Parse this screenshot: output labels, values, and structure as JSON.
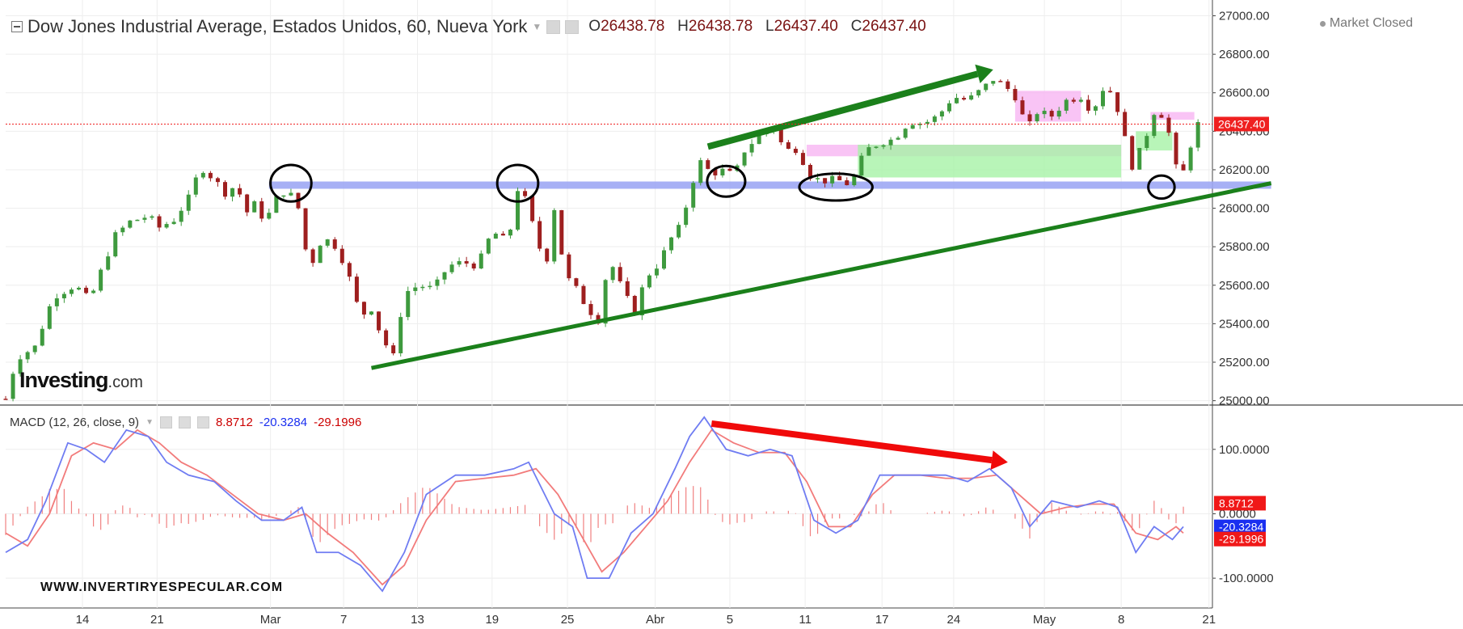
{
  "header": {
    "title": "Dow Jones Industrial Average, Estados Unidos, 60, Nueva York",
    "open_label": "O",
    "open": "26438.78",
    "high_label": "H",
    "high": "26438.78",
    "low_label": "L",
    "low": "26437.40",
    "close_label": "C",
    "close": "26437.40",
    "market_status": "Market Closed"
  },
  "logo": {
    "brand": "Investing",
    "suffix": ".com"
  },
  "watermark": "WWW.INVERTIRYESPECULAR.COM",
  "macd_header": {
    "label": "MACD (12, 26, close, 9)",
    "histogram": "8.8712",
    "macd": "-20.3284",
    "signal": "-29.1996"
  },
  "colors": {
    "up": "#3e9a3e",
    "down": "#9e1f1f",
    "trend": "#1b801b",
    "arrow_red": "#f00a0a",
    "support_band": "#9ea8f5",
    "pink_zone": "#f7b5f2",
    "green_zone": "#a6f2a6",
    "macd_line": "#6f7cf2",
    "signal_line": "#f27b7b",
    "histogram": "#f08080",
    "last_price": "#ef2020",
    "macd_badge": "#1a2ff0",
    "signal_badge": "#f01818"
  },
  "chart_data": [
    {
      "type": "candlestick",
      "title": "Dow Jones Industrial Average, Estados Unidos, 60, Nueva York",
      "x_ticks": [
        "14",
        "21",
        "Mar",
        "7",
        "13",
        "19",
        "25",
        "Abr",
        "5",
        "11",
        "17",
        "24",
        "May",
        "8",
        "21"
      ],
      "y_ticks": [
        27000,
        26800,
        26600,
        26400,
        26200,
        26000,
        25800,
        25600,
        25400,
        25200,
        25000
      ],
      "ylim": [
        24990,
        27040
      ],
      "last_price": 26437.4,
      "last_price_label": "26437.40",
      "close_path": [
        {
          "x": 0.0,
          "y": 25010
        },
        {
          "x": 1.5,
          "y": 25220
        },
        {
          "x": 4.0,
          "y": 25280
        },
        {
          "x": 6.5,
          "y": 25540
        },
        {
          "x": 9.5,
          "y": 25600
        },
        {
          "x": 11.5,
          "y": 25520
        },
        {
          "x": 13.5,
          "y": 25720
        },
        {
          "x": 15.0,
          "y": 25860
        },
        {
          "x": 17.0,
          "y": 25930
        },
        {
          "x": 19.5,
          "y": 25960
        },
        {
          "x": 21.0,
          "y": 25900
        },
        {
          "x": 23.0,
          "y": 25940
        },
        {
          "x": 25.5,
          "y": 26080
        },
        {
          "x": 26.5,
          "y": 26220
        },
        {
          "x": 28.5,
          "y": 26150
        },
        {
          "x": 30.0,
          "y": 26080
        },
        {
          "x": 31.5,
          "y": 26120
        },
        {
          "x": 33.0,
          "y": 25980
        },
        {
          "x": 34.0,
          "y": 26020
        },
        {
          "x": 35.5,
          "y": 25930
        },
        {
          "x": 37.0,
          "y": 26050
        },
        {
          "x": 38.5,
          "y": 26100
        },
        {
          "x": 40.0,
          "y": 26000
        },
        {
          "x": 41.5,
          "y": 25680
        },
        {
          "x": 43.0,
          "y": 25820
        },
        {
          "x": 44.5,
          "y": 25840
        },
        {
          "x": 46.5,
          "y": 25700
        },
        {
          "x": 48.5,
          "y": 25440
        },
        {
          "x": 50.0,
          "y": 25480
        },
        {
          "x": 51.5,
          "y": 25320
        },
        {
          "x": 53.0,
          "y": 25230
        },
        {
          "x": 54.5,
          "y": 25560
        },
        {
          "x": 56.5,
          "y": 25600
        },
        {
          "x": 58.5,
          "y": 25580
        },
        {
          "x": 60.5,
          "y": 25700
        },
        {
          "x": 62.5,
          "y": 25720
        },
        {
          "x": 64.5,
          "y": 25700
        },
        {
          "x": 66.5,
          "y": 25880
        },
        {
          "x": 68.0,
          "y": 25840
        },
        {
          "x": 69.5,
          "y": 25920
        },
        {
          "x": 70.0,
          "y": 26100
        },
        {
          "x": 71.5,
          "y": 26020
        },
        {
          "x": 72.5,
          "y": 25820
        },
        {
          "x": 74.0,
          "y": 25740
        },
        {
          "x": 75.0,
          "y": 26000
        },
        {
          "x": 76.5,
          "y": 25650
        },
        {
          "x": 78.0,
          "y": 25580
        },
        {
          "x": 79.5,
          "y": 25480
        },
        {
          "x": 81.0,
          "y": 25420
        },
        {
          "x": 82.5,
          "y": 25740
        },
        {
          "x": 84.5,
          "y": 25560
        },
        {
          "x": 86.0,
          "y": 25460
        },
        {
          "x": 87.5,
          "y": 25640
        },
        {
          "x": 89.5,
          "y": 25720
        },
        {
          "x": 90.5,
          "y": 25820
        },
        {
          "x": 92.5,
          "y": 25920
        },
        {
          "x": 93.5,
          "y": 26100
        },
        {
          "x": 95.0,
          "y": 26240
        },
        {
          "x": 96.5,
          "y": 26180
        },
        {
          "x": 98.5,
          "y": 26200
        },
        {
          "x": 99.5,
          "y": 26160
        },
        {
          "x": 101.0,
          "y": 26300
        },
        {
          "x": 103.0,
          "y": 26380
        },
        {
          "x": 105.0,
          "y": 26420
        },
        {
          "x": 106.5,
          "y": 26300
        },
        {
          "x": 108.5,
          "y": 26310
        },
        {
          "x": 109.5,
          "y": 26180
        },
        {
          "x": 111.5,
          "y": 26140
        },
        {
          "x": 113.5,
          "y": 26150
        },
        {
          "x": 115.5,
          "y": 26120
        },
        {
          "x": 117.5,
          "y": 26300
        },
        {
          "x": 119.5,
          "y": 26340
        },
        {
          "x": 121.5,
          "y": 26360
        },
        {
          "x": 123.5,
          "y": 26450
        },
        {
          "x": 125.5,
          "y": 26440
        },
        {
          "x": 127.5,
          "y": 26480
        },
        {
          "x": 129.5,
          "y": 26580
        },
        {
          "x": 131.5,
          "y": 26560
        },
        {
          "x": 133.5,
          "y": 26620
        },
        {
          "x": 135.0,
          "y": 26670
        },
        {
          "x": 136.5,
          "y": 26640
        },
        {
          "x": 138.5,
          "y": 26560
        },
        {
          "x": 139.5,
          "y": 26400
        },
        {
          "x": 141.0,
          "y": 26500
        },
        {
          "x": 143.0,
          "y": 26480
        },
        {
          "x": 145.0,
          "y": 26560
        },
        {
          "x": 147.0,
          "y": 26580
        },
        {
          "x": 148.5,
          "y": 26500
        },
        {
          "x": 150.0,
          "y": 26620
        },
        {
          "x": 151.5,
          "y": 26600
        },
        {
          "x": 152.5,
          "y": 26430
        },
        {
          "x": 154.0,
          "y": 26220
        },
        {
          "x": 155.5,
          "y": 26330
        },
        {
          "x": 157.0,
          "y": 26500
        },
        {
          "x": 158.5,
          "y": 26480
        },
        {
          "x": 159.5,
          "y": 26300
        },
        {
          "x": 160.5,
          "y": 26120
        },
        {
          "x": 162.0,
          "y": 26330
        },
        {
          "x": 163.0,
          "y": 26437.4
        }
      ],
      "trend_lines": [
        {
          "name": "support-uptrend",
          "from": {
            "x": 50.0,
            "y": 25170
          },
          "to": {
            "x": 173.0,
            "y": 26130
          }
        },
        {
          "name": "resistance-band",
          "from": {
            "x": 36.0,
            "y": 26120
          },
          "to": {
            "x": 173.0,
            "y": 26120
          }
        }
      ],
      "arrows": [
        {
          "name": "price-up-arrow",
          "from": {
            "x": 96.0,
            "y": 26320
          },
          "to": {
            "x": 135.0,
            "y": 26720
          }
        }
      ],
      "zones": [
        {
          "name": "pink-zone-1",
          "x": [
            109.5,
            152.5
          ],
          "y": [
            26270,
            26330
          ],
          "kind": "pink"
        },
        {
          "name": "pink-zone-2",
          "x": [
            138.0,
            147.0
          ],
          "y": [
            26450,
            26610
          ],
          "kind": "pink"
        },
        {
          "name": "pink-zone-3",
          "x": [
            156.5,
            162.5
          ],
          "y": [
            26460,
            26500
          ],
          "kind": "pink"
        },
        {
          "name": "green-zone-1",
          "x": [
            116.5,
            152.5
          ],
          "y": [
            26160,
            26330
          ],
          "kind": "green"
        },
        {
          "name": "green-zone-2",
          "x": [
            154.5,
            159.5
          ],
          "y": [
            26300,
            26400
          ],
          "kind": "green"
        }
      ],
      "ellipses": [
        {
          "name": "circle-mar",
          "x": 39.0,
          "y": 26130,
          "rx": 2.8,
          "ry": 95
        },
        {
          "name": "circle-19",
          "x": 70.0,
          "y": 26130,
          "rx": 2.8,
          "ry": 95
        },
        {
          "name": "circle-abr",
          "x": 98.5,
          "y": 26140,
          "rx": 2.6,
          "ry": 80
        },
        {
          "name": "circle-11",
          "x": 113.5,
          "y": 26110,
          "rx": 5.0,
          "ry": 70
        },
        {
          "name": "circle-may",
          "x": 158.0,
          "y": 26110,
          "rx": 1.8,
          "ry": 60
        }
      ]
    },
    {
      "type": "macd",
      "title": "MACD (12, 26, close, 9)",
      "y_ticks": [
        100,
        0,
        -100
      ],
      "y_tick_labels": [
        "100.0000",
        "0.0000",
        "-100.0000"
      ],
      "ylim": [
        -140,
        160
      ],
      "values": {
        "histogram": 8.8712,
        "macd": -20.3284,
        "signal": -29.1996
      },
      "macd_line": [
        {
          "x": 0.0,
          "y": -60
        },
        {
          "x": 3.0,
          "y": -40
        },
        {
          "x": 5.5,
          "y": 20
        },
        {
          "x": 8.5,
          "y": 110
        },
        {
          "x": 11.0,
          "y": 100
        },
        {
          "x": 13.5,
          "y": 80
        },
        {
          "x": 16.5,
          "y": 130
        },
        {
          "x": 19.5,
          "y": 120
        },
        {
          "x": 22.0,
          "y": 80
        },
        {
          "x": 25.0,
          "y": 60
        },
        {
          "x": 28.5,
          "y": 50
        },
        {
          "x": 31.5,
          "y": 20
        },
        {
          "x": 35.0,
          "y": -10
        },
        {
          "x": 38.0,
          "y": -10
        },
        {
          "x": 40.5,
          "y": 10
        },
        {
          "x": 42.5,
          "y": -60
        },
        {
          "x": 45.5,
          "y": -60
        },
        {
          "x": 48.5,
          "y": -80
        },
        {
          "x": 51.5,
          "y": -120
        },
        {
          "x": 54.5,
          "y": -60
        },
        {
          "x": 57.5,
          "y": 30
        },
        {
          "x": 61.5,
          "y": 60
        },
        {
          "x": 65.5,
          "y": 60
        },
        {
          "x": 69.5,
          "y": 70
        },
        {
          "x": 71.5,
          "y": 80
        },
        {
          "x": 75.0,
          "y": 0
        },
        {
          "x": 77.5,
          "y": -20
        },
        {
          "x": 79.5,
          "y": -100
        },
        {
          "x": 82.5,
          "y": -100
        },
        {
          "x": 85.5,
          "y": -30
        },
        {
          "x": 88.5,
          "y": 0
        },
        {
          "x": 91.5,
          "y": 70
        },
        {
          "x": 93.5,
          "y": 120
        },
        {
          "x": 95.5,
          "y": 150
        },
        {
          "x": 98.5,
          "y": 100
        },
        {
          "x": 101.5,
          "y": 90
        },
        {
          "x": 104.5,
          "y": 100
        },
        {
          "x": 107.5,
          "y": 90
        },
        {
          "x": 110.5,
          "y": -10
        },
        {
          "x": 113.5,
          "y": -30
        },
        {
          "x": 116.5,
          "y": -10
        },
        {
          "x": 119.5,
          "y": 60
        },
        {
          "x": 122.5,
          "y": 60
        },
        {
          "x": 125.5,
          "y": 60
        },
        {
          "x": 128.5,
          "y": 60
        },
        {
          "x": 131.5,
          "y": 50
        },
        {
          "x": 134.5,
          "y": 70
        },
        {
          "x": 137.5,
          "y": 40
        },
        {
          "x": 140.0,
          "y": -20
        },
        {
          "x": 143.0,
          "y": 20
        },
        {
          "x": 146.5,
          "y": 10
        },
        {
          "x": 149.5,
          "y": 20
        },
        {
          "x": 152.0,
          "y": 10
        },
        {
          "x": 154.5,
          "y": -60
        },
        {
          "x": 157.0,
          "y": -20
        },
        {
          "x": 159.5,
          "y": -40
        },
        {
          "x": 161.0,
          "y": -20
        }
      ],
      "signal_line": [
        {
          "x": 0.0,
          "y": -30
        },
        {
          "x": 3.0,
          "y": -50
        },
        {
          "x": 6.0,
          "y": 0
        },
        {
          "x": 9.0,
          "y": 90
        },
        {
          "x": 12.0,
          "y": 110
        },
        {
          "x": 15.0,
          "y": 100
        },
        {
          "x": 18.0,
          "y": 130
        },
        {
          "x": 21.0,
          "y": 110
        },
        {
          "x": 24.0,
          "y": 80
        },
        {
          "x": 27.5,
          "y": 60
        },
        {
          "x": 31.0,
          "y": 30
        },
        {
          "x": 34.5,
          "y": 0
        },
        {
          "x": 38.0,
          "y": -10
        },
        {
          "x": 41.0,
          "y": 0
        },
        {
          "x": 44.0,
          "y": -30
        },
        {
          "x": 47.5,
          "y": -60
        },
        {
          "x": 51.5,
          "y": -110
        },
        {
          "x": 54.5,
          "y": -80
        },
        {
          "x": 57.5,
          "y": -10
        },
        {
          "x": 61.5,
          "y": 50
        },
        {
          "x": 65.5,
          "y": 55
        },
        {
          "x": 69.5,
          "y": 60
        },
        {
          "x": 72.5,
          "y": 70
        },
        {
          "x": 75.5,
          "y": 30
        },
        {
          "x": 78.5,
          "y": -30
        },
        {
          "x": 81.5,
          "y": -90
        },
        {
          "x": 84.5,
          "y": -60
        },
        {
          "x": 87.5,
          "y": -20
        },
        {
          "x": 90.5,
          "y": 20
        },
        {
          "x": 93.5,
          "y": 80
        },
        {
          "x": 96.5,
          "y": 130
        },
        {
          "x": 99.5,
          "y": 110
        },
        {
          "x": 103.0,
          "y": 95
        },
        {
          "x": 106.5,
          "y": 95
        },
        {
          "x": 109.5,
          "y": 50
        },
        {
          "x": 112.5,
          "y": -20
        },
        {
          "x": 115.5,
          "y": -20
        },
        {
          "x": 118.5,
          "y": 30
        },
        {
          "x": 121.5,
          "y": 60
        },
        {
          "x": 125.0,
          "y": 60
        },
        {
          "x": 128.5,
          "y": 55
        },
        {
          "x": 132.0,
          "y": 55
        },
        {
          "x": 135.5,
          "y": 60
        },
        {
          "x": 138.5,
          "y": 30
        },
        {
          "x": 141.5,
          "y": 0
        },
        {
          "x": 145.0,
          "y": 10
        },
        {
          "x": 148.5,
          "y": 15
        },
        {
          "x": 151.5,
          "y": 15
        },
        {
          "x": 154.5,
          "y": -30
        },
        {
          "x": 157.5,
          "y": -40
        },
        {
          "x": 160.0,
          "y": -20
        },
        {
          "x": 161.0,
          "y": -30
        }
      ],
      "arrows": [
        {
          "name": "macd-down-arrow",
          "from": {
            "x": 96.5,
            "y": 140
          },
          "to": {
            "x": 137.0,
            "y": 80
          }
        }
      ]
    }
  ]
}
